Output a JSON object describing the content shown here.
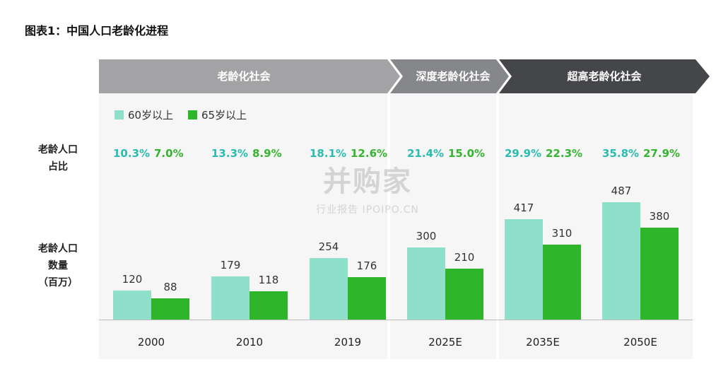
{
  "title": "图表1：中国人口老龄化进程",
  "stages": [
    {
      "label": "老龄化社会"
    },
    {
      "label": "深度老龄化社会"
    },
    {
      "label": "超高老龄化社会"
    }
  ],
  "legend": [
    {
      "label": "60岁以上",
      "color": "#8ee0cb"
    },
    {
      "label": "65岁以上",
      "color": "#2fb52a"
    }
  ],
  "row_labels": {
    "ratio": "老龄人口\n占比",
    "count": "老龄人口\n数量\n（百万）"
  },
  "watermark": {
    "main": "并购家",
    "sub": "行业报告 IPOIPO.CN"
  },
  "chart_data": {
    "type": "bar",
    "categories": [
      "2000",
      "2010",
      "2019",
      "2025E",
      "2035E",
      "2050E"
    ],
    "series": [
      {
        "name": "60岁以上",
        "values": [
          120,
          179,
          254,
          300,
          417,
          487
        ],
        "ratio": [
          "10.3%",
          "13.3%",
          "18.1%",
          "21.4%",
          "29.9%",
          "35.8%"
        ],
        "color": "#8ee0cb",
        "ratio_color": "#2bbcb0"
      },
      {
        "name": "65岁以上",
        "values": [
          88,
          118,
          176,
          210,
          310,
          380
        ],
        "ratio": [
          "7.0%",
          "8.9%",
          "12.6%",
          "15.0%",
          "22.3%",
          "27.9%"
        ],
        "color": "#2fb52a",
        "ratio_color": "#35b52f"
      }
    ],
    "ylim": [
      0,
      487
    ]
  }
}
